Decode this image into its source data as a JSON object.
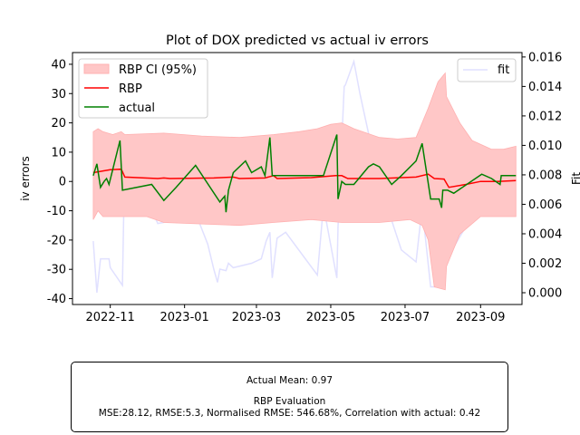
{
  "chart_data": {
    "type": "line",
    "title": "Plot of DOX predicted vs actual iv errors",
    "ylabel": "iv errors",
    "y2label": "Fit",
    "ylim": [
      -42,
      44
    ],
    "y2lim": [
      -0.0008,
      0.0163
    ],
    "xlim": [
      "2022-10-01",
      "2023-10-05"
    ],
    "yticks": [
      -40,
      -30,
      -20,
      -10,
      0,
      10,
      20,
      30,
      40
    ],
    "y2ticks": [
      0.0,
      0.002,
      0.004,
      0.006,
      0.008,
      0.01,
      0.012,
      0.014,
      0.016
    ],
    "y2tick_labels": [
      "0.000",
      "0.002",
      "0.004",
      "0.006",
      "0.008",
      "0.010",
      "0.012",
      "0.014",
      "0.016"
    ],
    "xticks": [
      "2022-11-01",
      "2023-01-01",
      "2023-03-01",
      "2023-05-01",
      "2023-07-01",
      "2023-09-01"
    ],
    "xtick_labels": [
      "2022-11",
      "2023-01",
      "2023-03",
      "2023-05",
      "2023-07",
      "2023-09"
    ],
    "legend_left": {
      "placement": "upper-left",
      "entries": [
        "RBP CI (95%)",
        "RBP",
        "actual"
      ]
    },
    "legend_right": {
      "placement": "upper-right",
      "entries": [
        "fit"
      ]
    },
    "colors": {
      "ci": "#ffc7c7",
      "rbp": "#ff0000",
      "actual": "#008000",
      "fit": "#e0e0ff"
    },
    "ci_upper": [
      [
        "2022-10-18",
        17
      ],
      [
        "2022-10-22",
        18
      ],
      [
        "2022-10-26",
        17
      ],
      [
        "2022-11-03",
        16
      ],
      [
        "2022-11-10",
        17
      ],
      [
        "2022-11-13",
        16
      ],
      [
        "2022-12-15",
        16.5
      ],
      [
        "2023-01-15",
        15.5
      ],
      [
        "2023-02-15",
        15
      ],
      [
        "2023-03-15",
        16
      ],
      [
        "2023-04-05",
        17
      ],
      [
        "2023-04-20",
        18
      ],
      [
        "2023-05-01",
        19.5
      ],
      [
        "2023-05-10",
        20
      ],
      [
        "2023-05-20",
        18
      ],
      [
        "2023-06-10",
        15
      ],
      [
        "2023-06-25",
        14.5
      ],
      [
        "2023-07-10",
        15
      ],
      [
        "2023-07-20",
        25
      ],
      [
        "2023-07-28",
        34
      ],
      [
        "2023-08-03",
        37
      ],
      [
        "2023-08-04",
        29
      ],
      [
        "2023-08-15",
        20
      ],
      [
        "2023-08-25",
        14
      ],
      [
        "2023-09-10",
        11
      ],
      [
        "2023-09-20",
        11
      ],
      [
        "2023-09-30",
        12
      ]
    ],
    "ci_lower": [
      [
        "2022-10-18",
        -13
      ],
      [
        "2022-10-22",
        -10
      ],
      [
        "2022-10-26",
        -12
      ],
      [
        "2022-11-05",
        -12
      ],
      [
        "2022-11-15",
        -12
      ],
      [
        "2022-12-01",
        -12
      ],
      [
        "2022-12-15",
        -14
      ],
      [
        "2023-01-15",
        -14.5
      ],
      [
        "2023-02-15",
        -15
      ],
      [
        "2023-03-15",
        -14
      ],
      [
        "2023-04-15",
        -13
      ],
      [
        "2023-05-10",
        -14
      ],
      [
        "2023-06-10",
        -14
      ],
      [
        "2023-07-05",
        -13
      ],
      [
        "2023-07-15",
        -15
      ],
      [
        "2023-07-20",
        -20
      ],
      [
        "2023-07-25",
        -36
      ],
      [
        "2023-08-03",
        -37
      ],
      [
        "2023-08-04",
        -29
      ],
      [
        "2023-08-15",
        -18
      ],
      [
        "2023-09-01",
        -12
      ],
      [
        "2023-09-30",
        -12
      ]
    ],
    "series": [
      {
        "name": "RBP",
        "points": [
          [
            "2022-10-18",
            3
          ],
          [
            "2022-11-01",
            4
          ],
          [
            "2022-11-10",
            4.2
          ],
          [
            "2022-11-13",
            1.5
          ],
          [
            "2022-12-10",
            1
          ],
          [
            "2022-12-15",
            1.2
          ],
          [
            "2022-12-20",
            1
          ],
          [
            "2023-01-25",
            1.2
          ],
          [
            "2023-02-10",
            1.5
          ],
          [
            "2023-02-15",
            1
          ],
          [
            "2023-03-08",
            1.2
          ],
          [
            "2023-03-15",
            2
          ],
          [
            "2023-03-18",
            1
          ],
          [
            "2023-04-15",
            1.3
          ],
          [
            "2023-05-05",
            2
          ],
          [
            "2023-05-10",
            2
          ],
          [
            "2023-05-15",
            1
          ],
          [
            "2023-06-10",
            1
          ],
          [
            "2023-07-10",
            1.5
          ],
          [
            "2023-07-20",
            2.5
          ],
          [
            "2023-07-25",
            1
          ],
          [
            "2023-08-02",
            0.8
          ],
          [
            "2023-08-06",
            -2
          ],
          [
            "2023-08-20",
            -1
          ],
          [
            "2023-09-01",
            0
          ],
          [
            "2023-09-15",
            0
          ],
          [
            "2023-09-30",
            0.3
          ]
        ]
      },
      {
        "name": "actual",
        "points": [
          [
            "2022-10-18",
            2
          ],
          [
            "2022-10-21",
            6
          ],
          [
            "2022-10-24",
            -2
          ],
          [
            "2022-10-27",
            0
          ],
          [
            "2022-10-29",
            1
          ],
          [
            "2022-10-31",
            -1
          ],
          [
            "2022-11-09",
            14
          ],
          [
            "2022-11-11",
            -3
          ],
          [
            "2022-12-05",
            -1
          ],
          [
            "2022-12-15",
            -6.5
          ],
          [
            "2022-12-25",
            -2
          ],
          [
            "2023-01-10",
            5.5
          ],
          [
            "2023-01-30",
            -7
          ],
          [
            "2023-02-03",
            -5
          ],
          [
            "2023-02-04",
            -10.5
          ],
          [
            "2023-02-06",
            -3
          ],
          [
            "2023-02-10",
            3
          ],
          [
            "2023-02-20",
            7
          ],
          [
            "2023-02-25",
            3
          ],
          [
            "2023-03-05",
            5
          ],
          [
            "2023-03-08",
            2
          ],
          [
            "2023-03-12",
            15
          ],
          [
            "2023-03-14",
            2
          ],
          [
            "2023-04-20",
            2
          ],
          [
            "2023-04-25",
            2
          ],
          [
            "2023-05-06",
            16
          ],
          [
            "2023-05-07",
            -6
          ],
          [
            "2023-05-10",
            0
          ],
          [
            "2023-05-13",
            -1
          ],
          [
            "2023-05-17",
            -1
          ],
          [
            "2023-05-20",
            -1
          ],
          [
            "2023-06-01",
            5
          ],
          [
            "2023-06-05",
            6
          ],
          [
            "2023-06-10",
            5
          ],
          [
            "2023-06-20",
            -1
          ],
          [
            "2023-06-28",
            2
          ],
          [
            "2023-07-10",
            7
          ],
          [
            "2023-07-15",
            13
          ],
          [
            "2023-07-22",
            -6
          ],
          [
            "2023-07-29",
            -6
          ],
          [
            "2023-07-31",
            -9
          ],
          [
            "2023-08-01",
            -3
          ],
          [
            "2023-08-05",
            -3
          ],
          [
            "2023-08-10",
            -4
          ],
          [
            "2023-09-02",
            2.5
          ],
          [
            "2023-09-10",
            1
          ],
          [
            "2023-09-17",
            -1
          ],
          [
            "2023-09-18",
            2
          ],
          [
            "2023-09-30",
            2
          ]
        ]
      },
      {
        "name": "fit",
        "axis": "right",
        "points": [
          [
            "2022-10-18",
            0.0035
          ],
          [
            "2022-10-21",
            0.0
          ],
          [
            "2022-10-24",
            0.0023
          ],
          [
            "2022-10-31",
            0.0023
          ],
          [
            "2022-11-01",
            0.0017
          ],
          [
            "2022-11-11",
            0.0005
          ],
          [
            "2022-11-13",
            0.0097
          ],
          [
            "2022-12-10",
            0.0047
          ],
          [
            "2023-01-11",
            0.0052
          ],
          [
            "2023-01-20",
            0.0033
          ],
          [
            "2023-01-25",
            0.0016
          ],
          [
            "2023-01-28",
            0.0007
          ],
          [
            "2023-01-30",
            0.0016
          ],
          [
            "2023-02-04",
            0.0015
          ],
          [
            "2023-02-06",
            0.002
          ],
          [
            "2023-02-10",
            0.0017
          ],
          [
            "2023-02-25",
            0.002
          ],
          [
            "2023-03-05",
            0.0023
          ],
          [
            "2023-03-09",
            0.0035
          ],
          [
            "2023-03-12",
            0.0041
          ],
          [
            "2023-03-14",
            0.001
          ],
          [
            "2023-03-18",
            0.0037
          ],
          [
            "2023-03-25",
            0.0041
          ],
          [
            "2023-04-20",
            0.0012
          ],
          [
            "2023-04-25",
            0.0059
          ],
          [
            "2023-05-06",
            0.001
          ],
          [
            "2023-05-07",
            0.0045
          ],
          [
            "2023-05-12",
            0.014
          ],
          [
            "2023-05-13",
            0.0141
          ],
          [
            "2023-05-20",
            0.0157
          ],
          [
            "2023-05-25",
            0.0135
          ],
          [
            "2023-06-05",
            0.0093
          ],
          [
            "2023-06-10",
            0.0058
          ],
          [
            "2023-06-20",
            0.0049
          ],
          [
            "2023-06-28",
            0.0029
          ],
          [
            "2023-07-10",
            0.0021
          ],
          [
            "2023-07-15",
            0.0058
          ],
          [
            "2023-07-22",
            0.0004
          ],
          [
            "2023-08-01",
            0.0004
          ],
          [
            "2023-08-05",
            0.0028
          ],
          [
            "2023-08-10",
            0.0031
          ],
          [
            "2023-08-20",
            0.0045
          ],
          [
            "2023-09-05",
            0.0063
          ],
          [
            "2023-09-30",
            0.0082
          ]
        ]
      }
    ]
  },
  "stats": {
    "actual_mean": "Actual Mean: 0.97",
    "rbp_heading": "RBP Evaluation",
    "rbp_metrics": "MSE:28.12, RMSE:5.3, Normalised RMSE: 546.68%, Correlation with actual: 0.42"
  }
}
